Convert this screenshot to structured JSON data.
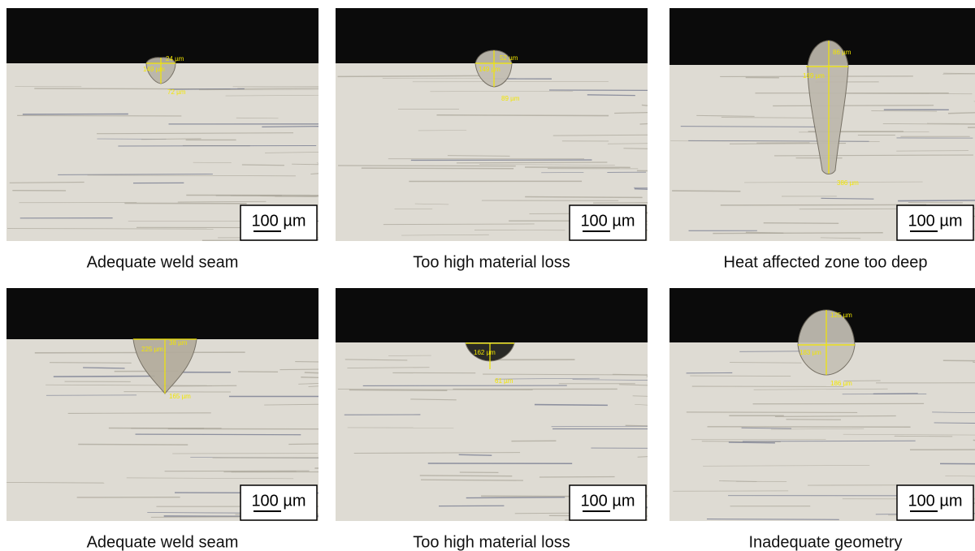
{
  "panels": [
    {
      "caption": "Adequate weld seam",
      "scale_bar": "100 µm",
      "measurements": [
        "24 µm",
        "149 µm",
        "72 µm"
      ]
    },
    {
      "caption": "Too high material loss",
      "scale_bar": "100 µm",
      "measurements": [
        "52 µm",
        "149 µm",
        "89 µm"
      ]
    },
    {
      "caption": "Heat affected zone too deep",
      "scale_bar": "100 µm",
      "measurements": [
        "86 µm",
        "169 µm",
        "386 µm"
      ]
    },
    {
      "caption": "Adequate weld seam",
      "scale_bar": "100 µm",
      "measurements": [
        "38 µm",
        "225 µm",
        "165 µm"
      ]
    },
    {
      "caption": "Too high material loss",
      "scale_bar": "100 µm",
      "measurements": [
        "162 µm",
        "61 µm"
      ]
    },
    {
      "caption": "Inadequate geometry",
      "scale_bar": "100 µm",
      "measurements": [
        "125 µm",
        "183 µm",
        "186 µm"
      ]
    }
  ]
}
